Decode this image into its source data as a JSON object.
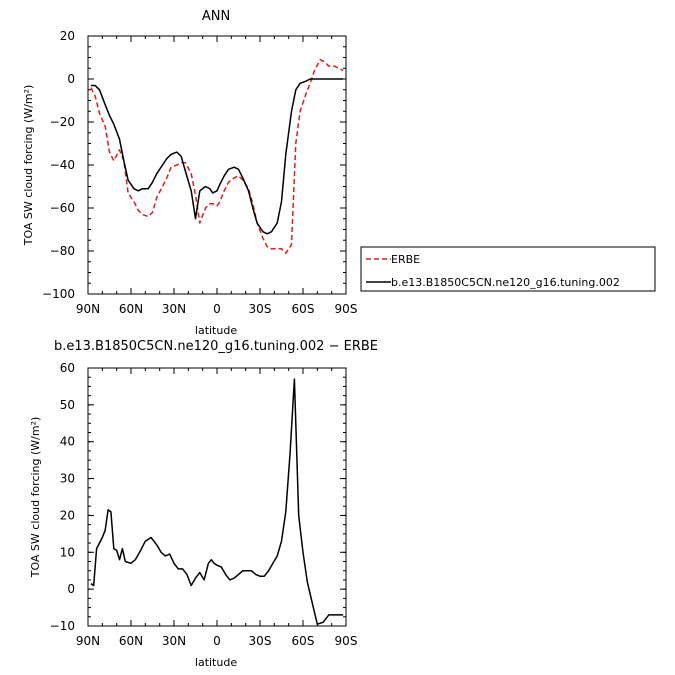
{
  "chart_data": [
    {
      "type": "line",
      "title": "ANN",
      "xlabel": "latitude",
      "ylabel": "TOA SW cloud forcing (W/m²)",
      "xlim": [
        90,
        -90
      ],
      "ylim": [
        -100,
        20
      ],
      "xticks": [
        90,
        60,
        30,
        0,
        -30,
        -60,
        -90
      ],
      "xtick_labels": [
        "90N",
        "60N",
        "30N",
        "0",
        "30S",
        "60S",
        "90S"
      ],
      "yticks": [
        20,
        0,
        -20,
        -40,
        -60,
        -80,
        -100
      ],
      "ytick_labels": [
        "20",
        "0",
        "−20",
        "−40",
        "−60",
        "−80",
        "−100"
      ],
      "legend": "outside-right",
      "series": [
        {
          "name": "ERBE",
          "color": "#e41a1c",
          "dash": true,
          "x": [
            88,
            85,
            82,
            78,
            75,
            72,
            68,
            65,
            62,
            58,
            55,
            52,
            48,
            45,
            42,
            38,
            35,
            32,
            28,
            25,
            22,
            18,
            15,
            12,
            8,
            5,
            3,
            0,
            -2,
            -5,
            -8,
            -12,
            -15,
            -18,
            -22,
            -25,
            -28,
            -32,
            -35,
            -38,
            -42,
            -45,
            -48,
            -52,
            -55,
            -58,
            -62,
            -65,
            -68,
            -72,
            -75,
            -78,
            -82,
            -85,
            -88
          ],
          "y": [
            -4,
            -8,
            -16,
            -22,
            -34,
            -38,
            -33,
            -38,
            -53,
            -57,
            -61,
            -63,
            -64,
            -62,
            -55,
            -50,
            -46,
            -41,
            -40,
            -39,
            -39,
            -44,
            -54,
            -67,
            -60,
            -58,
            -58,
            -59,
            -57,
            -52,
            -48,
            -46,
            -45,
            -47,
            -51,
            -58,
            -67,
            -74,
            -78,
            -79,
            -79,
            -79,
            -81,
            -77,
            -30,
            -15,
            -7,
            -2,
            4,
            9,
            8,
            6,
            6,
            5,
            4
          ]
        },
        {
          "name": "b.e13.B1850C5CN.ne120_g16.tuning.002",
          "color": "#000000",
          "dash": false,
          "x": [
            88,
            85,
            82,
            78,
            75,
            72,
            68,
            65,
            62,
            58,
            55,
            52,
            48,
            45,
            42,
            38,
            35,
            32,
            28,
            25,
            22,
            18,
            15,
            12,
            8,
            5,
            3,
            0,
            -2,
            -5,
            -8,
            -12,
            -15,
            -18,
            -22,
            -25,
            -28,
            -32,
            -35,
            -38,
            -42,
            -45,
            -48,
            -52,
            -55,
            -58,
            -62,
            -65,
            -68,
            -72,
            -75,
            -78,
            -82,
            -85,
            -88
          ],
          "y": [
            -3,
            -3,
            -5,
            -12,
            -17,
            -21,
            -28,
            -38,
            -47,
            -51,
            -52,
            -51,
            -51,
            -48,
            -44,
            -40,
            -37,
            -35,
            -34,
            -36,
            -43,
            -52,
            -65,
            -52,
            -50,
            -51,
            -53,
            -52,
            -49,
            -45,
            -42,
            -41,
            -42,
            -46,
            -52,
            -60,
            -67,
            -71,
            -72,
            -71,
            -67,
            -57,
            -35,
            -15,
            -5,
            -2,
            -1,
            0,
            0,
            0,
            0,
            0,
            0,
            0,
            0
          ]
        }
      ]
    },
    {
      "type": "line",
      "title": "b.e13.B1850C5CN.ne120_g16.tuning.002 − ERBE",
      "xlabel": "latitude",
      "ylabel": "TOA SW cloud forcing (W/m²)",
      "xlim": [
        90,
        -90
      ],
      "ylim": [
        -10,
        60
      ],
      "xticks": [
        90,
        60,
        30,
        0,
        -30,
        -60,
        -90
      ],
      "xtick_labels": [
        "90N",
        "60N",
        "30N",
        "0",
        "30S",
        "60S",
        "90S"
      ],
      "yticks": [
        60,
        50,
        40,
        30,
        20,
        10,
        0,
        -10
      ],
      "ytick_labels": [
        "60",
        "50",
        "40",
        "30",
        "20",
        "10",
        "0",
        "−10"
      ],
      "series": [
        {
          "color": "#000000",
          "dash": false,
          "x": [
            88,
            86,
            84,
            80,
            78,
            76,
            74,
            72,
            70,
            68,
            66,
            64,
            60,
            57,
            54,
            50,
            46,
            42,
            39,
            36,
            33,
            30,
            27,
            24,
            21,
            18,
            15,
            12,
            9,
            6,
            4,
            2,
            0,
            -3,
            -6,
            -9,
            -12,
            -15,
            -18,
            -21,
            -24,
            -27,
            -30,
            -33,
            -36,
            -39,
            -42,
            -45,
            -48,
            -51,
            -54,
            -57,
            -60,
            -63,
            -66,
            -70,
            -74,
            -78,
            -80,
            -84,
            -86,
            -88
          ],
          "y": [
            1.5,
            1,
            11,
            14,
            16,
            21.5,
            21,
            11,
            10.5,
            8,
            11,
            7.5,
            7,
            8,
            10,
            13,
            14,
            12,
            10,
            9,
            9.5,
            7,
            5.5,
            5.5,
            4,
            1,
            3,
            4.5,
            2.5,
            7,
            8,
            7,
            6.5,
            6,
            4,
            2.5,
            3,
            4,
            5,
            5,
            5,
            4,
            3.5,
            3.5,
            5,
            7,
            9,
            13,
            21,
            37,
            57,
            20,
            10,
            2,
            -3,
            -9.5,
            -9,
            -7,
            -7,
            -7,
            -7,
            -7
          ]
        }
      ]
    }
  ]
}
